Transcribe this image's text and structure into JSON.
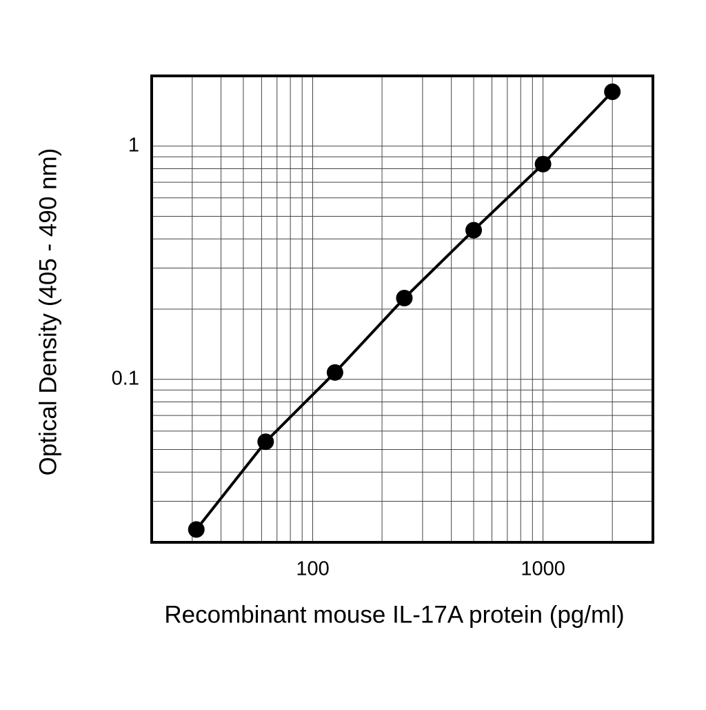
{
  "chart_data": {
    "type": "line",
    "x_label": "Recombinant mouse IL-17A protein (pg/ml)",
    "y_label": "Optical Density (405 - 490 nm)",
    "x": [
      31.25,
      62.5,
      125,
      250,
      500,
      1000,
      2000
    ],
    "series": [
      {
        "color": "#000000",
        "values": [
          0.0227,
          0.054,
          0.107,
          0.223,
          0.436,
          0.837,
          1.71
        ]
      }
    ],
    "xlim": [
      20,
      3000
    ],
    "ylim": [
      0.02,
      2
    ],
    "xticks": [
      100,
      1000
    ],
    "yticks": [
      0.1,
      1
    ],
    "x_minor_grid": [
      30,
      40,
      50,
      60,
      70,
      80,
      90,
      200,
      300,
      400,
      500,
      600,
      700,
      800,
      900,
      2000
    ],
    "y_minor_grid": [
      0.03,
      0.04,
      0.05,
      0.06,
      0.07,
      0.08,
      0.09,
      0.2,
      0.3,
      0.4,
      0.5,
      0.6,
      0.7,
      0.8,
      0.9
    ],
    "x_log": true,
    "y_log": true,
    "grid": true
  }
}
